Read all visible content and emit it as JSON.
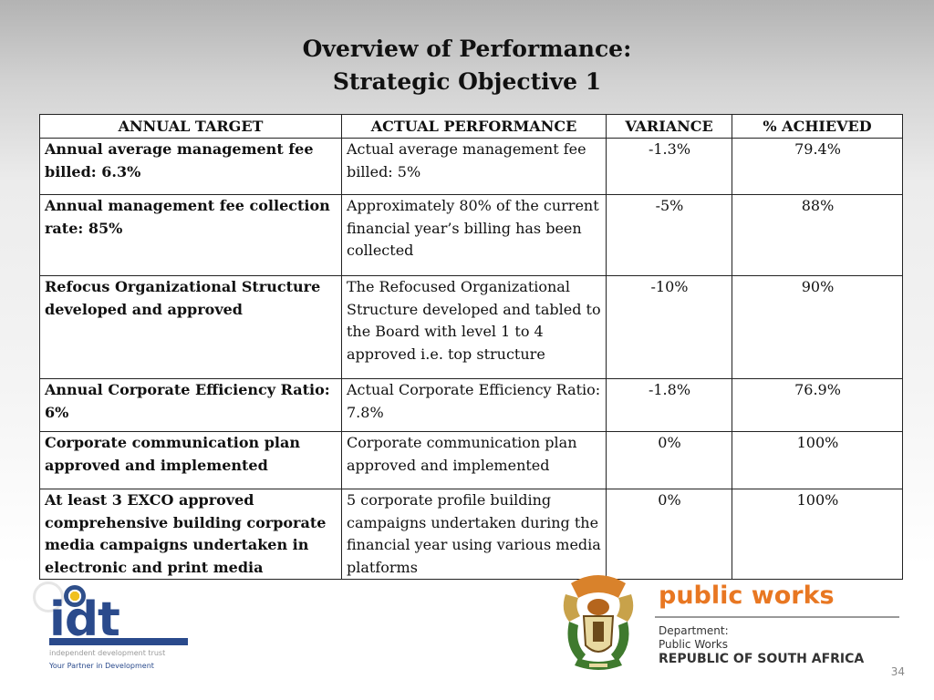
{
  "slide": {
    "title_line1": "Overview of Performance:",
    "title_line2": "Strategic Objective 1",
    "page_number": "34"
  },
  "table": {
    "headers": [
      "ANNUAL TARGET",
      "ACTUAL PERFORMANCE",
      "VARIANCE",
      "% ACHIEVED"
    ],
    "rows": [
      {
        "target": "Annual average management fee billed: 6.3%",
        "actual": "Actual average management fee billed: 5%",
        "variance": "-1.3%",
        "achieved": "79.4%"
      },
      {
        "target": "Annual management fee collection rate: 85%",
        "actual": "Approximately 80% of the current financial year’s billing has been collected",
        "variance": "-5%",
        "achieved": "88%"
      },
      {
        "target": "Refocus Organizational Structure developed and approved",
        "actual": "The Refocused Organizational Structure developed and tabled to the Board with level 1 to 4 approved i.e. top structure",
        "variance": "-10%",
        "achieved": "90%"
      },
      {
        "target": "Annual Corporate Efficiency Ratio: 6%",
        "actual": "Actual Corporate Efficiency Ratio: 7.8%",
        "variance": "-1.8%",
        "achieved": "76.9%"
      },
      {
        "target": "Corporate communication plan approved and implemented",
        "actual": "Corporate communication plan approved and implemented",
        "variance": "0%",
        "achieved": "100%"
      },
      {
        "target": "At least 3 EXCO approved comprehensive building corporate media campaigns undertaken in electronic and print media",
        "actual": "5 corporate profile building campaigns undertaken during the financial year using various media platforms",
        "variance": "0%",
        "achieved": "100%"
      }
    ]
  },
  "logos": {
    "idt": {
      "wordmark": "idt",
      "subtitle": "independent development trust",
      "tagline": "Your Partner in Development"
    },
    "public_works": {
      "title": "public works",
      "line1": "Department:",
      "line2": "Public Works",
      "line3": "REPUBLIC OF SOUTH AFRICA"
    },
    "colors": {
      "idt_blue": "#2a4a8c",
      "public_works_orange": "#e87722"
    }
  }
}
